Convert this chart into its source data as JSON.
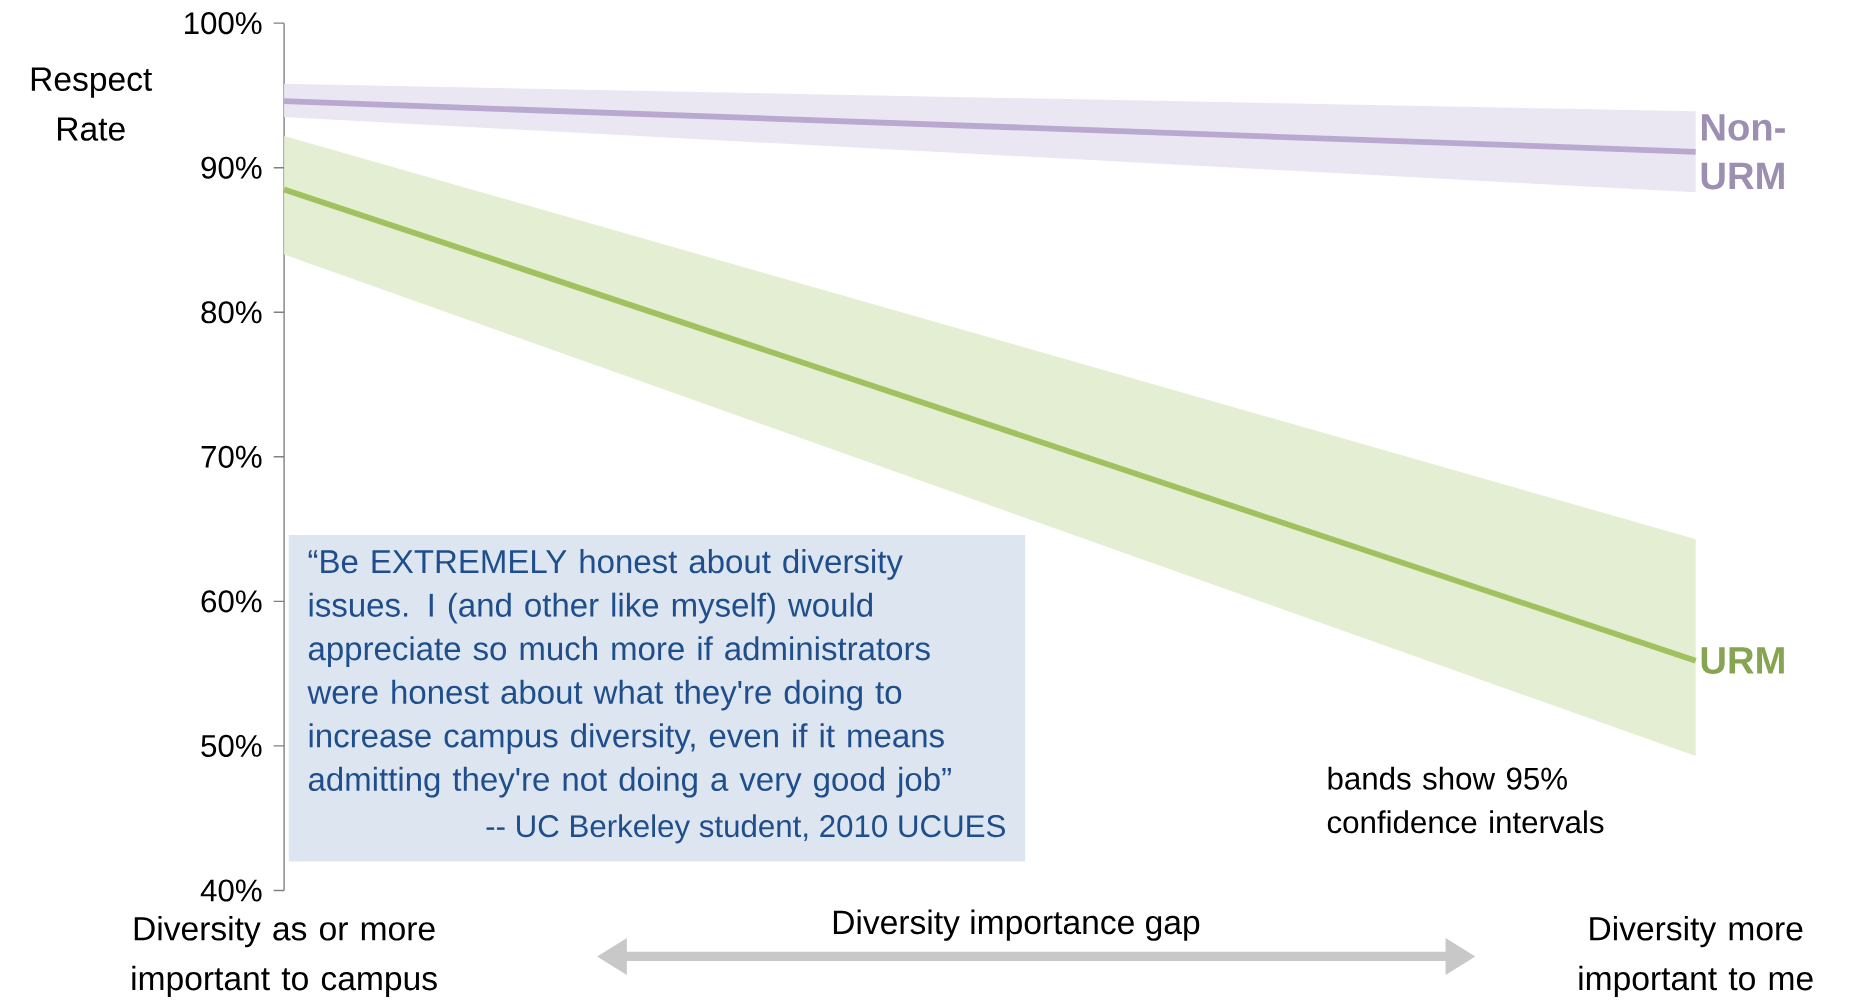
{
  "chart_data": {
    "type": "line",
    "ylabel": "Respect Rate",
    "xlabel": "Diversity importance gap",
    "categories": [
      "Diversity as or more important to campus",
      "Diversity more important to me"
    ],
    "ylim": [
      40,
      100
    ],
    "yticks": [
      {
        "value": 40,
        "label": "40%"
      },
      {
        "value": 50,
        "label": "50%"
      },
      {
        "value": 60,
        "label": "60%"
      },
      {
        "value": 70,
        "label": "70%"
      },
      {
        "value": 80,
        "label": "80%"
      },
      {
        "value": 90,
        "label": "90%"
      },
      {
        "value": 100,
        "label": "100%"
      }
    ],
    "series": [
      {
        "name": "Non-URM",
        "color": "#b9a8d0",
        "values": [
          94.6,
          91.1
        ],
        "lower": [
          93.5,
          88.3
        ],
        "upper": [
          95.8,
          93.9
        ]
      },
      {
        "name": "URM",
        "color": "#9fc160",
        "values": [
          88.5,
          55.9
        ],
        "lower": [
          84.0,
          49.3
        ],
        "upper": [
          92.2,
          64.3
        ]
      }
    ],
    "annotations": [
      "“Be EXTREMELY honest about diversity issues.  I (and other like myself) would appreciate so much more if administrators were honest about what they're doing to increase campus diversity, even if it means admitting they're not doing a very good job”",
      "-- UC Berkeley student, 2010 UCUES",
      "bands show 95% confidence intervals"
    ]
  }
}
